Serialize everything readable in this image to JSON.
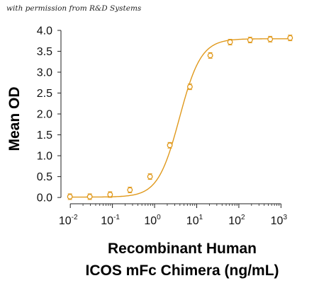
{
  "watermark": "with permission from R&D Systems",
  "chart_data": {
    "type": "scatter",
    "xscale": "log",
    "xlim": [
      0.006,
      2500
    ],
    "ylim": [
      -0.15,
      4.05
    ],
    "ylabel": "Mean OD",
    "xlabel_lines": [
      "Recombinant Human",
      "ICOS mFc Chimera (ng/mL)"
    ],
    "y_ticks": [
      "0.0",
      "0.5",
      "1.0",
      "1.5",
      "2.0",
      "2.5",
      "3.0",
      "3.5",
      "4.0"
    ],
    "x_ticks": [
      {
        "base": "10",
        "exp": "-2",
        "value": 0.01
      },
      {
        "base": "10",
        "exp": "-1",
        "value": 0.1
      },
      {
        "base": "10",
        "exp": "0",
        "value": 1
      },
      {
        "base": "10",
        "exp": "1",
        "value": 10
      },
      {
        "base": "10",
        "exp": "2",
        "value": 100
      },
      {
        "base": "10",
        "exp": "3",
        "value": 1000
      }
    ],
    "color": "#E0991C",
    "points": [
      {
        "x": 0.0098,
        "y": 0.02
      },
      {
        "x": 0.029,
        "y": 0.02
      },
      {
        "x": 0.088,
        "y": 0.07
      },
      {
        "x": 0.26,
        "y": 0.18
      },
      {
        "x": 0.78,
        "y": 0.5
      },
      {
        "x": 2.3,
        "y": 1.25
      },
      {
        "x": 6.9,
        "y": 2.65
      },
      {
        "x": 21,
        "y": 3.4
      },
      {
        "x": 62,
        "y": 3.72
      },
      {
        "x": 185,
        "y": 3.77
      },
      {
        "x": 555,
        "y": 3.79
      },
      {
        "x": 1650,
        "y": 3.82
      }
    ],
    "fit": {
      "model": "4PL",
      "bottom": 0.01,
      "top": 3.8,
      "ec50": 3.9,
      "hill": 1.7
    }
  }
}
